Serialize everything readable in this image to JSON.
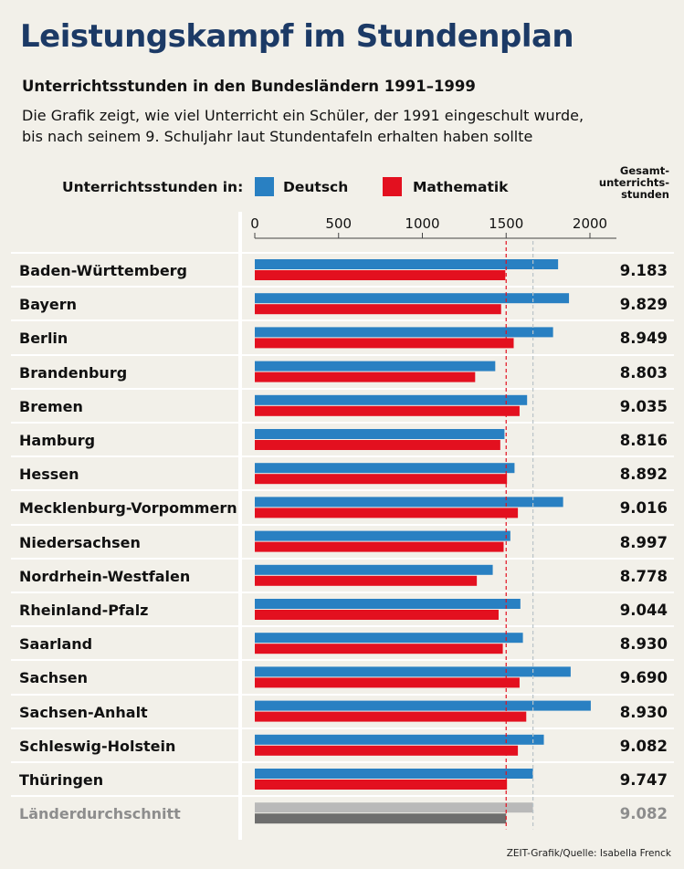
{
  "title": "Leistungskampf im Stundenplan",
  "subtitle": "Unterrichtsstunden in den Bundesländern 1991–1999",
  "description_lines": [
    "Die Grafik zeigt, wie viel Unterricht ein Schüler, der 1991 eingeschult wurde,",
    "bis nach seinem 9. Schuljahr laut Stundentafeln erhalten haben sollte"
  ],
  "legend": {
    "prefix": "Unterrichtsstunden in:",
    "deutsch": "Deutsch",
    "mathematik": "Mathematik"
  },
  "total_header": [
    "Gesamt-",
    "unterrichts-",
    "stunden"
  ],
  "source": "ZEIT-Grafik/Quelle: Isabella Frenck",
  "colors": {
    "deutsch": "#2980c2",
    "mathematik": "#e3101f",
    "avg_deutsch": "#b9b9b9",
    "avg_mathematik": "#6e6e6e",
    "title": "#1c3a66",
    "background": "#f2f0e9"
  },
  "chart_data": {
    "type": "bar",
    "orientation": "horizontal",
    "xlim": [
      0,
      2150
    ],
    "xticks": [
      0,
      500,
      1000,
      1500,
      2000
    ],
    "reference_lines": [
      {
        "series": "Mathematik",
        "value": 1500,
        "style": "dashed",
        "color": "#e3101f"
      },
      {
        "series": "Deutsch",
        "value": 1660,
        "style": "dashed",
        "color": "#b9c4c8"
      }
    ],
    "categories": [
      "Baden-Württemberg",
      "Bayern",
      "Berlin",
      "Brandenburg",
      "Bremen",
      "Hamburg",
      "Hessen",
      "Mecklenburg-Vorpommern",
      "Niedersachsen",
      "Nordrhein-Westfalen",
      "Rheinland-Pfalz",
      "Saarland",
      "Sachsen",
      "Sachsen-Anhalt",
      "Schleswig-Holstein",
      "Thüringen",
      "Länderdurchschnitt"
    ],
    "series": [
      {
        "name": "Deutsch",
        "values": [
          1810,
          1875,
          1780,
          1435,
          1625,
          1490,
          1550,
          1840,
          1525,
          1420,
          1585,
          1600,
          1885,
          2005,
          1725,
          1660,
          1660
        ]
      },
      {
        "name": "Mathematik",
        "values": [
          1495,
          1470,
          1545,
          1315,
          1580,
          1465,
          1505,
          1570,
          1485,
          1325,
          1455,
          1480,
          1580,
          1620,
          1570,
          1505,
          1500
        ]
      }
    ],
    "totals": [
      "9.183",
      "9.829",
      "8.949",
      "8.803",
      "9.035",
      "8.816",
      "8.892",
      "9.016",
      "8.997",
      "8.778",
      "9.044",
      "8.930",
      "9.690",
      "8.930",
      "9.082",
      "9.747",
      "9.082"
    ]
  }
}
